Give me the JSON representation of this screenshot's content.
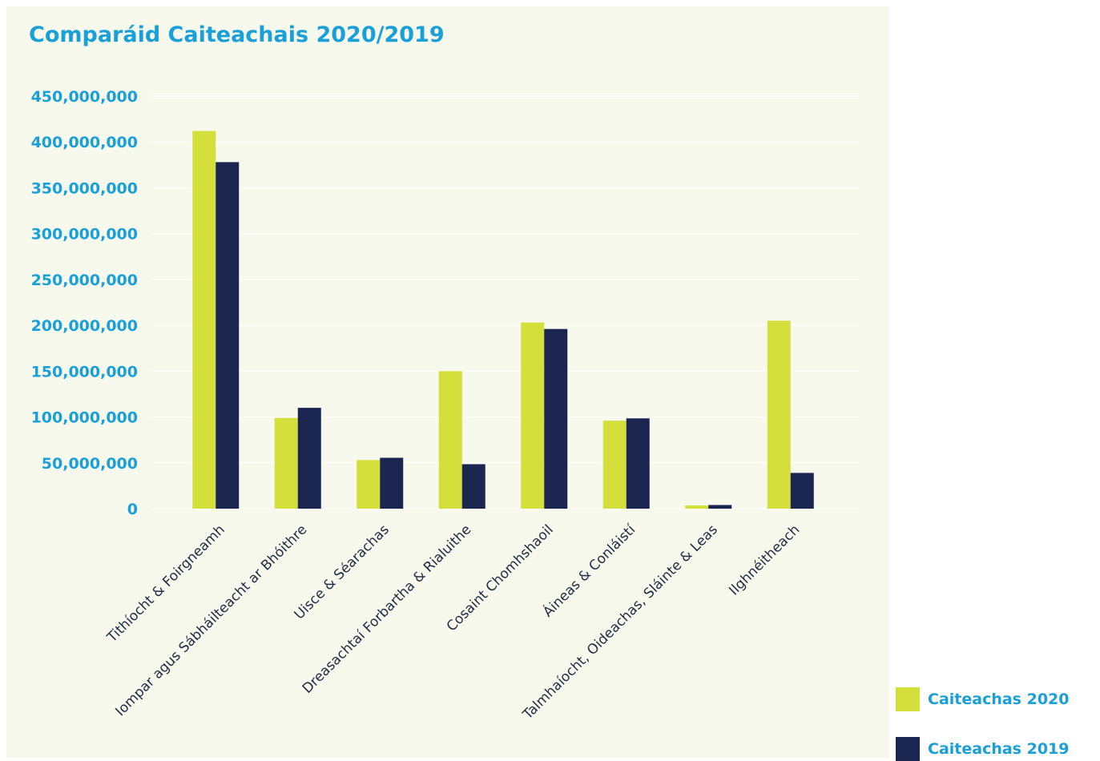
{
  "colors": {
    "background": "#f7f9ec",
    "series_2020": "#d4df3c",
    "series_2019": "#1a2650",
    "text_accent": "#1aa0d8",
    "category_text": "#1f2a44",
    "gridline": "#ffffff"
  },
  "chart_data": {
    "type": "bar",
    "title": "Comparáid Caiteachais 2020/2019",
    "xlabel": "",
    "ylabel": "",
    "ylim": [
      0,
      450000000
    ],
    "yticks": [
      0,
      50000000,
      100000000,
      150000000,
      200000000,
      250000000,
      300000000,
      350000000,
      400000000,
      450000000
    ],
    "ytick_labels": [
      "0",
      "50,000,000",
      "100,000,000",
      "150,000,000",
      "200,000,000",
      "250,000,000",
      "300,000,000",
      "350,000,000",
      "400,000,000",
      "450,000,000"
    ],
    "grid": true,
    "legend_position": "bottom-right",
    "categories": [
      "Tithíocht & Foirgneamh",
      "Iompar agus Sábháilteacht ar Bhóithre",
      "Uisce & Séarachas",
      "Dreasachtaí Forbartha & Rialuithe",
      "Cosaint Chomhshaoil",
      "Áineas & Conláistí",
      "Talmhaíocht, Oideachas, Sláinte & Leas",
      "Ilghnéitheach"
    ],
    "series": [
      {
        "name": "Caiteachas 2020",
        "values": [
          412000000,
          99000000,
          53000000,
          150000000,
          203000000,
          96000000,
          3500000,
          205000000
        ]
      },
      {
        "name": "Caiteachas 2019",
        "values": [
          378000000,
          110000000,
          55500000,
          48500000,
          196000000,
          98500000,
          4000000,
          39000000
        ]
      }
    ]
  }
}
